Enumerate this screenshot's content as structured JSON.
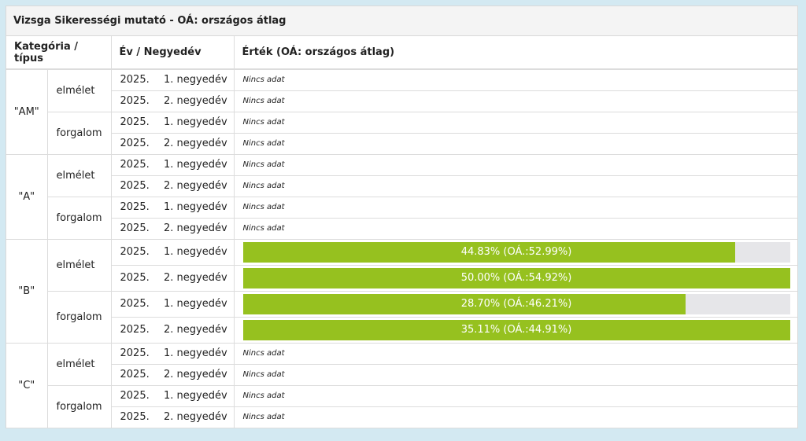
{
  "panel": {
    "title": "Vizsga Sikerességi mutató - OÁ: országos átlag"
  },
  "table": {
    "headers": {
      "category": "Kategória / típus",
      "period": "Év / Negyedév",
      "value": "Érték (OÁ: országos átlag)"
    },
    "groups": [
      {
        "category": "\"AM\"",
        "types": [
          {
            "type": "elmélet",
            "rows": [
              {
                "year": "2025.",
                "quarter": "1. negyedév",
                "value_text": "Nincs adat"
              },
              {
                "year": "2025.",
                "quarter": "2. negyedév",
                "value_text": "Nincs adat"
              }
            ]
          },
          {
            "type": "forgalom",
            "rows": [
              {
                "year": "2025.",
                "quarter": "1. negyedév",
                "value_text": "Nincs adat"
              },
              {
                "year": "2025.",
                "quarter": "2. negyedév",
                "value_text": "Nincs adat"
              }
            ]
          }
        ]
      },
      {
        "category": "\"A\"",
        "types": [
          {
            "type": "elmélet",
            "rows": [
              {
                "year": "2025.",
                "quarter": "1. negyedév",
                "value_text": "Nincs adat"
              },
              {
                "year": "2025.",
                "quarter": "2. negyedév",
                "value_text": "Nincs adat"
              }
            ]
          },
          {
            "type": "forgalom",
            "rows": [
              {
                "year": "2025.",
                "quarter": "1. negyedév",
                "value_text": "Nincs adat"
              },
              {
                "year": "2025.",
                "quarter": "2. negyedév",
                "value_text": "Nincs adat"
              }
            ]
          }
        ]
      },
      {
        "category": "\"B\"",
        "types": [
          {
            "type": "elmélet",
            "rows": [
              {
                "year": "2025.",
                "quarter": "1. negyedév",
                "value_text": "44.83% (OÁ.:52.99%)",
                "fill_percent": 90
              },
              {
                "year": "2025.",
                "quarter": "2. negyedév",
                "value_text": "50.00% (OÁ.:54.92%)",
                "fill_percent": 100
              }
            ]
          },
          {
            "type": "forgalom",
            "rows": [
              {
                "year": "2025.",
                "quarter": "1. negyedév",
                "value_text": "28.70% (OÁ.:46.21%)",
                "fill_percent": 81
              },
              {
                "year": "2025.",
                "quarter": "2. negyedév",
                "value_text": "35.11% (OÁ.:44.91%)",
                "fill_percent": 100
              }
            ]
          }
        ]
      },
      {
        "category": "\"C\"",
        "types": [
          {
            "type": "elmélet",
            "rows": [
              {
                "year": "2025.",
                "quarter": "1. negyedév",
                "value_text": "Nincs adat"
              },
              {
                "year": "2025.",
                "quarter": "2. negyedév",
                "value_text": "Nincs adat"
              }
            ]
          },
          {
            "type": "forgalom",
            "rows": [
              {
                "year": "2025.",
                "quarter": "1. negyedév",
                "value_text": "Nincs adat"
              },
              {
                "year": "2025.",
                "quarter": "2. negyedév",
                "value_text": "Nincs adat"
              }
            ]
          }
        ]
      }
    ]
  },
  "colors": {
    "bar_fill": "#96c11f",
    "bar_track": "#e6e6e9",
    "page_bg": "#d3e9f2"
  }
}
